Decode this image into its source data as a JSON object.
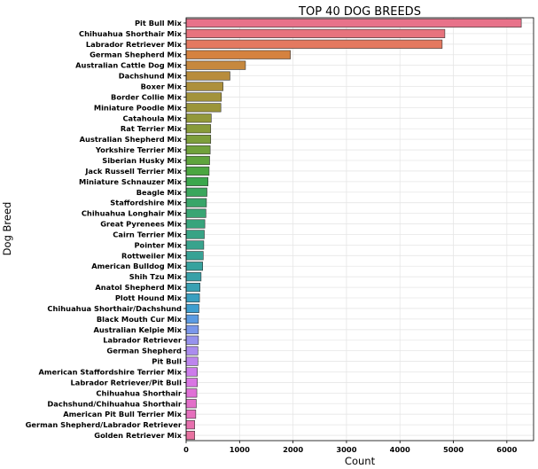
{
  "chart_data": {
    "type": "bar",
    "orientation": "horizontal",
    "title": "TOP 40 DOG BREEDS",
    "xlabel": "Count",
    "ylabel": "Dog Breed",
    "xlim": [
      0,
      6500
    ],
    "xticks": [
      0,
      1000,
      2000,
      3000,
      4000,
      5000,
      6000
    ],
    "grid": true,
    "categories": [
      "Pit Bull Mix",
      "Chihuahua Shorthair Mix",
      "Labrador Retriever Mix",
      "German Shepherd Mix",
      "Australian Cattle Dog Mix",
      "Dachshund Mix",
      "Boxer Mix",
      "Border Collie Mix",
      "Miniature Poodle Mix",
      "Catahoula Mix",
      "Rat Terrier Mix",
      "Australian Shepherd Mix",
      "Yorkshire Terrier Mix",
      "Siberian Husky Mix",
      "Jack Russell Terrier Mix",
      "Miniature Schnauzer Mix",
      "Beagle Mix",
      "Staffordshire Mix",
      "Chihuahua Longhair Mix",
      "Great Pyrenees Mix",
      "Cairn Terrier Mix",
      "Pointer Mix",
      "Rottweiler Mix",
      "American Bulldog Mix",
      "Shih Tzu Mix",
      "Anatol Shepherd Mix",
      "Plott Hound Mix",
      "Chihuahua Shorthair/Dachshund",
      "Black Mouth Cur Mix",
      "Australian Kelpie Mix",
      "Labrador Retriever",
      "German Shepherd",
      "Pit Bull",
      "American Staffordshire Terrier Mix",
      "Labrador Retriever/Pit Bull",
      "Chihuahua Shorthair",
      "Dachshund/Chihuahua Shorthair",
      "American Pit Bull Terrier Mix",
      "German Shepherd/Labrador Retriever",
      "Golden Retriever Mix"
    ],
    "values": [
      6270,
      4840,
      4790,
      1950,
      1110,
      820,
      690,
      660,
      650,
      470,
      460,
      460,
      450,
      440,
      430,
      410,
      390,
      380,
      370,
      350,
      340,
      330,
      320,
      310,
      280,
      260,
      250,
      240,
      230,
      230,
      230,
      220,
      220,
      210,
      210,
      200,
      190,
      180,
      160,
      160
    ],
    "colors": [
      "#e8728a",
      "#e7737d",
      "#e47960",
      "#d5823f",
      "#c6883e",
      "#b88c3c",
      "#ad903b",
      "#a3933b",
      "#9b953a",
      "#92983a",
      "#889b3a",
      "#7d9e3b",
      "#70a13b",
      "#5fa43d",
      "#4ba640",
      "#3ba74c",
      "#3aa65c",
      "#39a569",
      "#39a573",
      "#38a47c",
      "#38a385",
      "#38a38d",
      "#37a295",
      "#37a29e",
      "#38a1a8",
      "#39a1b3",
      "#3a9fc0",
      "#3e9ecf",
      "#5b9be2",
      "#7a97ea",
      "#9692ed",
      "#ab8cee",
      "#bd85ed",
      "#cd7ceb",
      "#d976e3",
      "#e070d6",
      "#e36fc9",
      "#e56fbc",
      "#e770ae",
      "#e872a0"
    ]
  }
}
